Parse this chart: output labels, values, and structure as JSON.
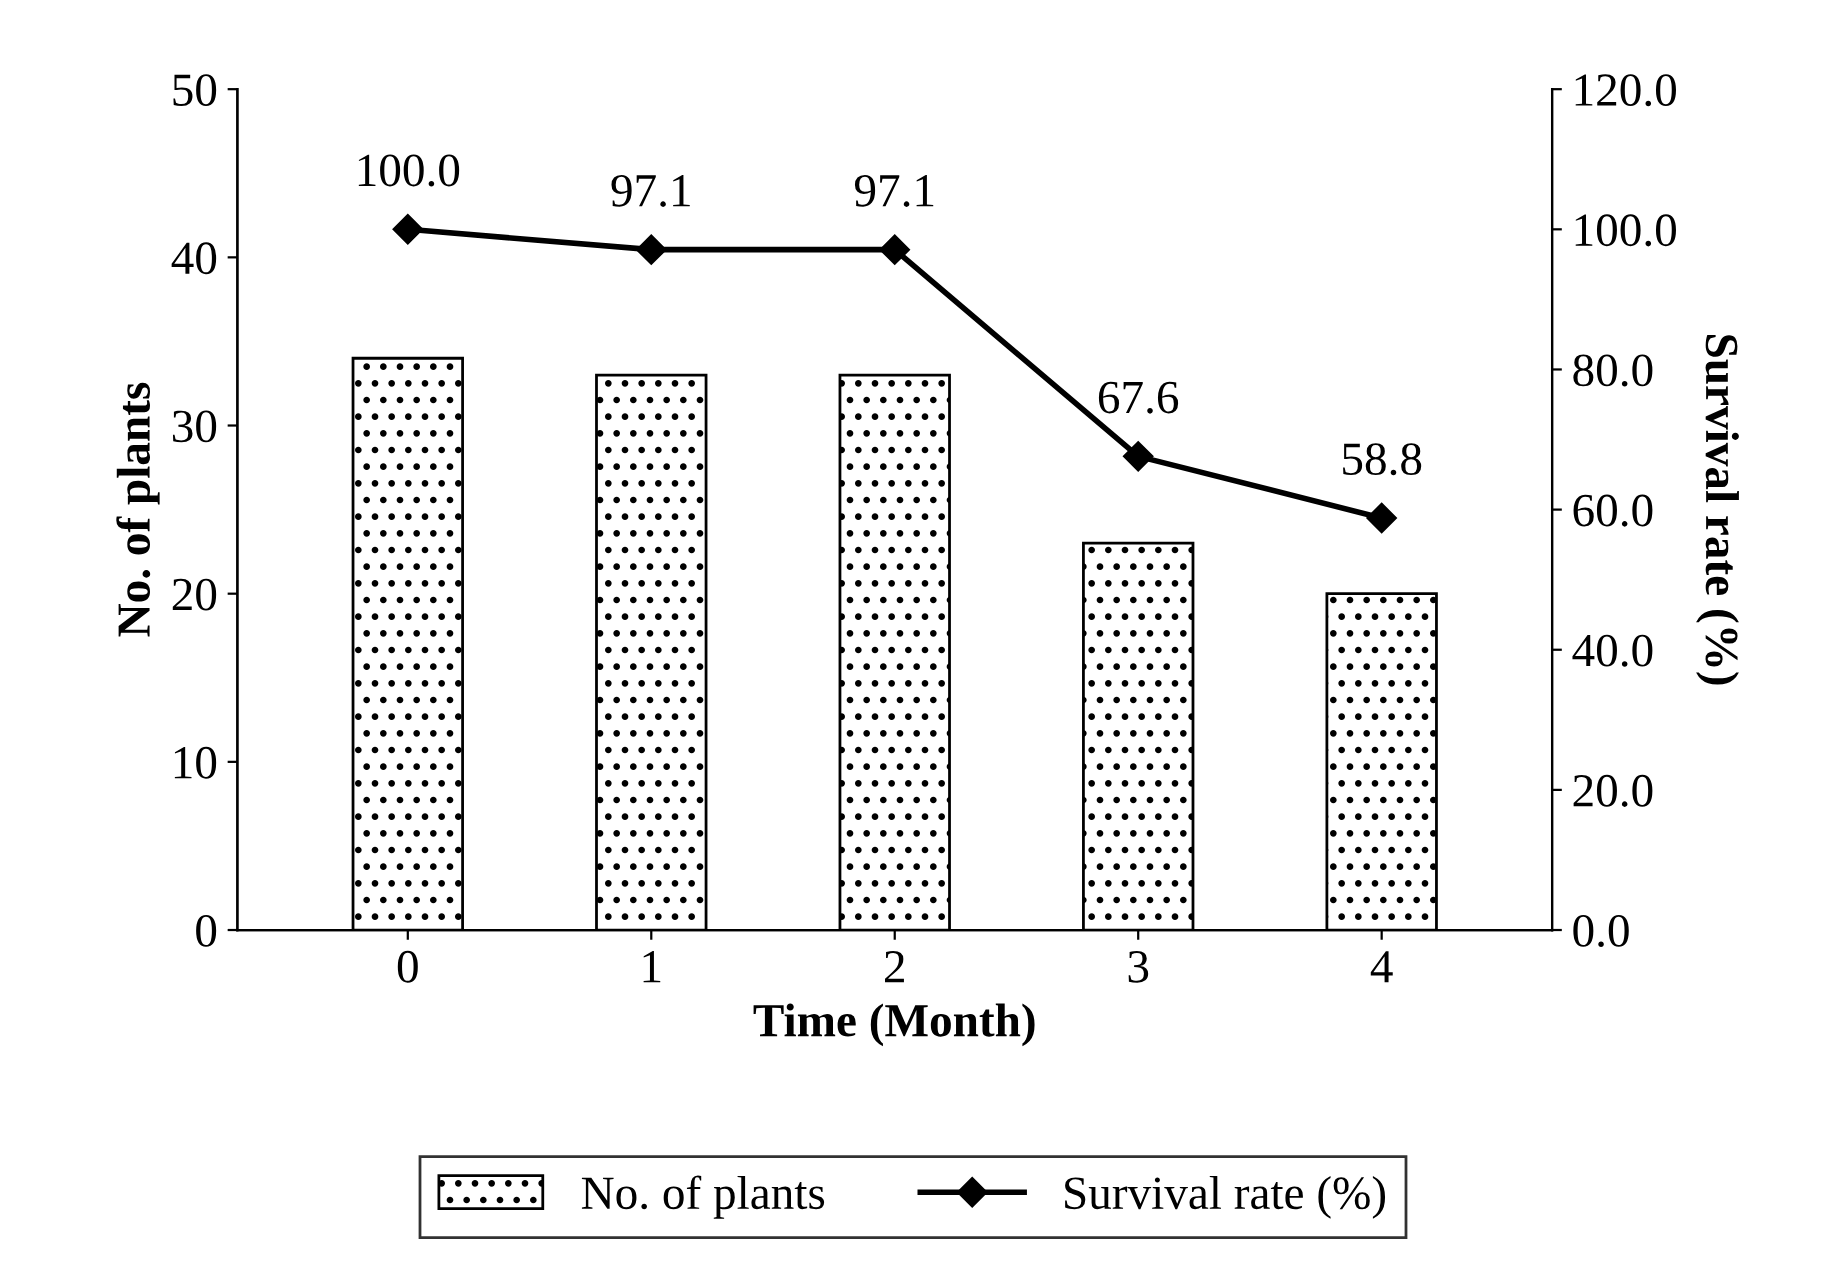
{
  "chart_data": {
    "type": "bar",
    "xlabel": "Time (Month)",
    "ylabel": "No. of plants",
    "y2label": "Survival rate (%)",
    "categories": [
      "0",
      "1",
      "2",
      "3",
      "4"
    ],
    "series": [
      {
        "name": "No. of plants",
        "color": "#000000",
        "values": [
          34,
          33,
          33,
          23,
          20
        ]
      },
      {
        "name": "Survival rate (%)",
        "type": "line",
        "axis": "y2",
        "color": "#000000",
        "marker": "diamond",
        "values": [
          100.0,
          97.1,
          97.1,
          67.6,
          58.8
        ],
        "value_labels": [
          "100.0",
          "97.1",
          "97.1",
          "67.6",
          "58.8"
        ]
      }
    ],
    "ylim": [
      0,
      50
    ],
    "yticks": [
      0,
      10,
      20,
      30,
      40,
      50
    ],
    "y2lim": [
      0,
      120
    ],
    "y2ticks": [
      {
        "value": 0,
        "label": "0.0"
      },
      {
        "value": 20,
        "label": "20.0"
      },
      {
        "value": 40,
        "label": "40.0"
      },
      {
        "value": 60,
        "label": "60.0"
      },
      {
        "value": 80,
        "label": "80.0"
      },
      {
        "value": 100,
        "label": "100.0"
      },
      {
        "value": 120,
        "label": "120.0"
      }
    ],
    "grid": false,
    "legend": "bottom"
  }
}
